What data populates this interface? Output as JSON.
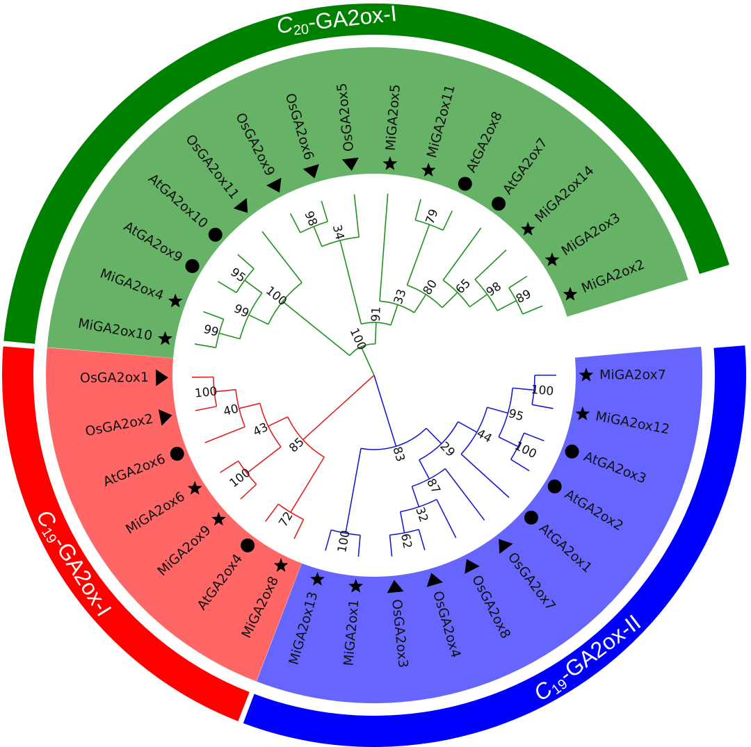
{
  "clades": [
    {
      "title": {
        "prefix": "C",
        "subscript": "19",
        "suffix": "-GA2ox-II"
      },
      "color": "#0000ff",
      "fill": "#6666ff",
      "branch": "#1a1acc",
      "tree": {
        "support": 83,
        "children": [
          {
            "support": 29,
            "children": [
              {
                "support": 44,
                "children": [
                  {
                    "support": 95,
                    "children": [
                      {
                        "support": 100,
                        "children": [
                          {
                            "label": "MiGA2ox7",
                            "marker": "star"
                          },
                          {
                            "label": "MiGA2ox12",
                            "marker": "star"
                          }
                        ]
                      },
                      {
                        "support": 100,
                        "children": [
                          {
                            "label": "AtGA2ox3",
                            "marker": "circle"
                          },
                          {
                            "label": "AtGA2ox2",
                            "marker": "circle"
                          }
                        ]
                      }
                    ]
                  },
                  {
                    "label": "AtGA2ox1",
                    "marker": "circle"
                  }
                ]
              },
              {
                "support": 87,
                "children": [
                  {
                    "label": "OsGA2ox7",
                    "marker": "triangle"
                  },
                  {
                    "support": 32,
                    "children": [
                      {
                        "label": "OsGA2ox8",
                        "marker": "triangle"
                      },
                      {
                        "support": 62,
                        "children": [
                          {
                            "label": "OsGA2ox4",
                            "marker": "triangle"
                          },
                          {
                            "label": "OsGA2ox3",
                            "marker": "triangle"
                          }
                        ]
                      }
                    ]
                  }
                ]
              }
            ]
          },
          {
            "support": 100,
            "children": [
              {
                "label": "MiGA2ox1",
                "marker": "star"
              },
              {
                "label": "MiGA2ox13",
                "marker": "star"
              }
            ]
          }
        ]
      }
    },
    {
      "title": {
        "prefix": "C",
        "subscript": "19",
        "suffix": "-GA2ox-I"
      },
      "color": "#ff0000",
      "fill": "#ff6666",
      "branch": "#e02020",
      "tree": {
        "support": 85,
        "children": [
          {
            "support": 72,
            "children": [
              {
                "label": "MiGA2ox8",
                "marker": "star"
              },
              {
                "label": "AtGA2ox4",
                "marker": "circle"
              }
            ]
          },
          {
            "support": 43,
            "children": [
              {
                "support": 100,
                "children": [
                  {
                    "label": "MiGA2ox9",
                    "marker": "star"
                  },
                  {
                    "label": "MiGA2ox6",
                    "marker": "star"
                  }
                ]
              },
              {
                "support": 40,
                "children": [
                  {
                    "label": "AtGA2ox6",
                    "marker": "circle"
                  },
                  {
                    "support": 100,
                    "children": [
                      {
                        "label": "OsGA2ox2",
                        "marker": "triangle"
                      },
                      {
                        "label": "OsGA2ox1",
                        "marker": "triangle"
                      }
                    ]
                  }
                ]
              }
            ]
          }
        ]
      }
    },
    {
      "title": {
        "prefix": "C",
        "subscript": "20",
        "suffix": "-GA2ox-I"
      },
      "color": "#008000",
      "fill": "#66b266",
      "branch": "#1f8f1f",
      "tree": {
        "support": 100,
        "children": [
          {
            "support": 100,
            "children": [
              {
                "support": 99,
                "children": [
                  {
                    "support": 99,
                    "children": [
                      {
                        "label": "MiGA2ox10",
                        "marker": "star"
                      },
                      {
                        "label": "MiGA2ox4",
                        "marker": "star"
                      }
                    ]
                  },
                  {
                    "support": 95,
                    "children": [
                      {
                        "label": "AtGA2ox9",
                        "marker": "circle"
                      },
                      {
                        "label": "AtGA2ox10",
                        "marker": "circle"
                      }
                    ]
                  }
                ]
              },
              {
                "label": "OsGA2ox11",
                "marker": "triangle"
              }
            ]
          },
          {
            "support": 91,
            "children": [
              {
                "support": 34,
                "children": [
                  {
                    "support": 98,
                    "children": [
                      {
                        "label": "OsGA2ox9",
                        "marker": "triangle"
                      },
                      {
                        "label": "OsGA2ox6",
                        "marker": "triangle"
                      }
                    ]
                  },
                  {
                    "label": "OsGA2ox5",
                    "marker": "triangle"
                  }
                ]
              },
              {
                "support": 33,
                "children": [
                  {
                    "label": "MiGA2ox5",
                    "marker": "star"
                  },
                  {
                    "support": 80,
                    "children": [
                      {
                        "support": 79,
                        "children": [
                          {
                            "label": "MiGA2ox11",
                            "marker": "star"
                          },
                          {
                            "label": "AtGA2ox8",
                            "marker": "circle"
                          }
                        ]
                      },
                      {
                        "support": 65,
                        "children": [
                          {
                            "label": "AtGA2ox7",
                            "marker": "circle"
                          },
                          {
                            "support": 98,
                            "children": [
                              {
                                "label": "MiGA2ox14",
                                "marker": "star"
                              },
                              {
                                "support": 89,
                                "children": [
                                  {
                                    "label": "MiGA2ox3",
                                    "marker": "star"
                                  },
                                  {
                                    "label": "MiGA2ox2",
                                    "marker": "star"
                                  }
                                ]
                              }
                            ]
                          }
                        ]
                      }
                    ]
                  }
                ]
              }
            ]
          }
        ]
      }
    }
  ]
}
